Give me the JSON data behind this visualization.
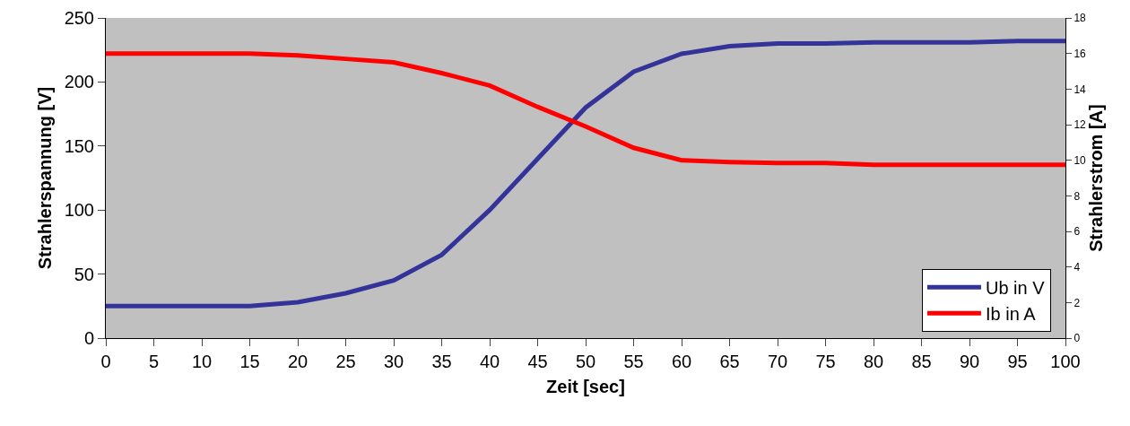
{
  "chart_data": {
    "type": "line",
    "xlabel": "Zeit [sec]",
    "ylabel": "Strahlerspannung [V]",
    "y2label": "Strahlerstrom [A]",
    "x": [
      0,
      5,
      10,
      15,
      20,
      25,
      30,
      35,
      40,
      45,
      50,
      55,
      60,
      65,
      70,
      75,
      80,
      85,
      90,
      95,
      100
    ],
    "series": [
      {
        "name": "Ub in V",
        "color": "#333399",
        "values": [
          25,
          25,
          25,
          25,
          28,
          35,
          45,
          65,
          100,
          140,
          180,
          208,
          222,
          228,
          230,
          230,
          231,
          231,
          231,
          232,
          232
        ]
      },
      {
        "name": "Ib in A",
        "color": "#ff0000",
        "axis": "y2",
        "values": [
          16,
          16,
          16,
          16,
          15.9,
          15.7,
          15.5,
          14.9,
          14.2,
          13,
          11.9,
          10.7,
          10,
          9.9,
          9.85,
          9.85,
          9.75,
          9.75,
          9.75,
          9.75,
          9.75
        ]
      }
    ],
    "xlim": [
      0,
      100
    ],
    "xticks": [
      0,
      5,
      10,
      15,
      20,
      25,
      30,
      35,
      40,
      45,
      50,
      55,
      60,
      65,
      70,
      75,
      80,
      85,
      90,
      95,
      100
    ],
    "ylim": [
      0,
      250
    ],
    "yticks": [
      0,
      50,
      100,
      150,
      200,
      250
    ],
    "y2lim": [
      0,
      18
    ],
    "y2ticks": [
      0,
      2,
      4,
      6,
      8,
      10,
      12,
      14,
      16,
      18
    ],
    "grid": false,
    "legend": "bottom right",
    "marker": "none",
    "line_style": "solid"
  }
}
